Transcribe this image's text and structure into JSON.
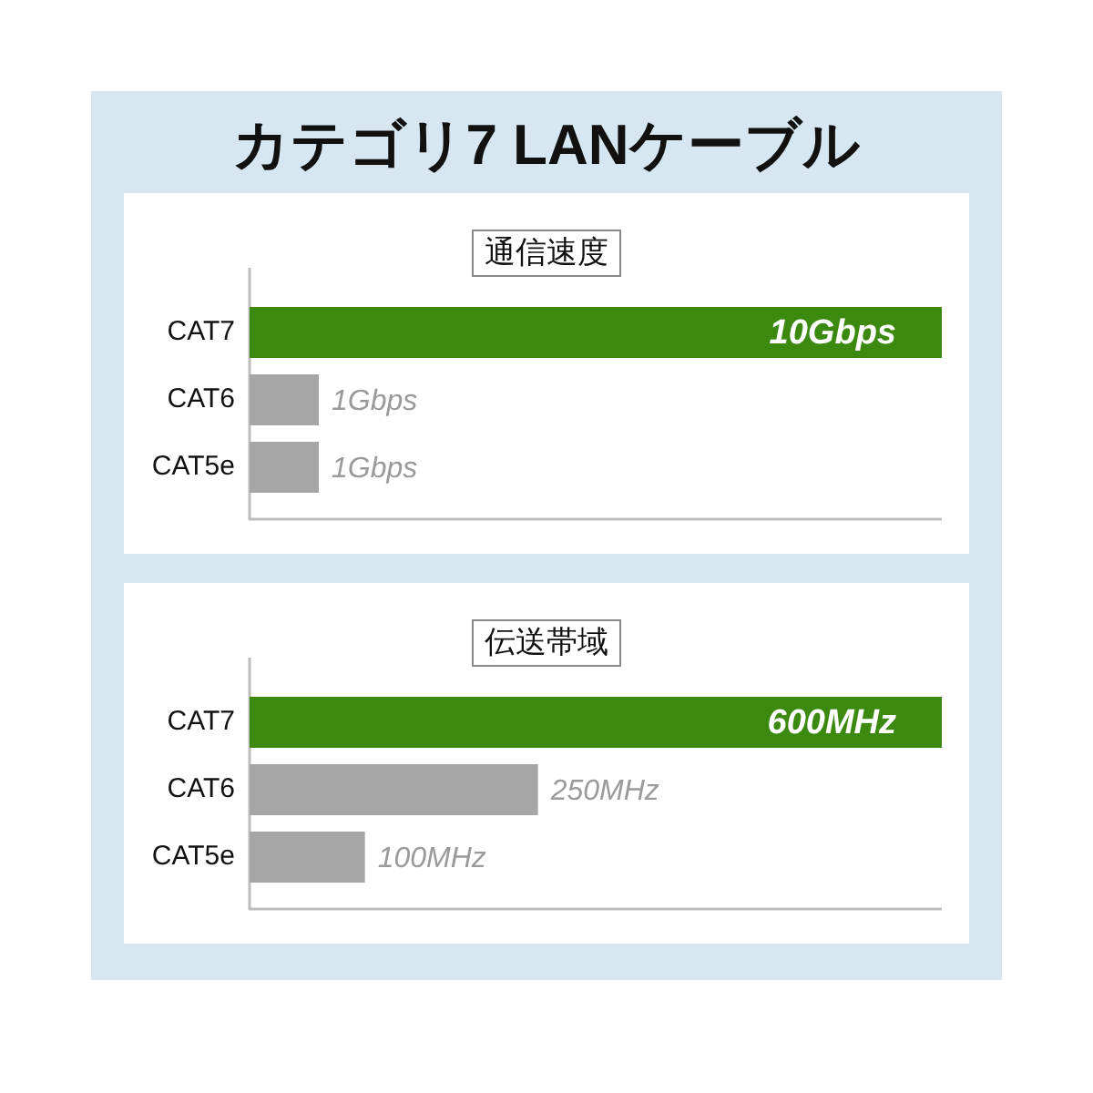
{
  "chart_data": [
    {
      "type": "bar",
      "title": "カテゴリ7 LANケーブル",
      "subtitle": "通信速度",
      "orientation": "horizontal",
      "categories": [
        "CAT7",
        "CAT6",
        "CAT5e"
      ],
      "values": [
        10,
        1,
        1
      ],
      "colors": [
        "#3b8a0f",
        "#a6a6a6",
        "#a6a6a6"
      ],
      "value_labels": [
        "10Gbps",
        "1Gbps",
        "1Gbps"
      ]
    },
    {
      "type": "bar",
      "subtitle": "伝送帯域",
      "orientation": "horizontal",
      "categories": [
        "CAT7",
        "CAT6",
        "CAT5e"
      ],
      "values": [
        600,
        250,
        100
      ],
      "colors": [
        "#3b8a0f",
        "#a6a6a6",
        "#a6a6a6"
      ],
      "value_labels": [
        "600MHz",
        "250MHz",
        "100MHz"
      ]
    }
  ]
}
